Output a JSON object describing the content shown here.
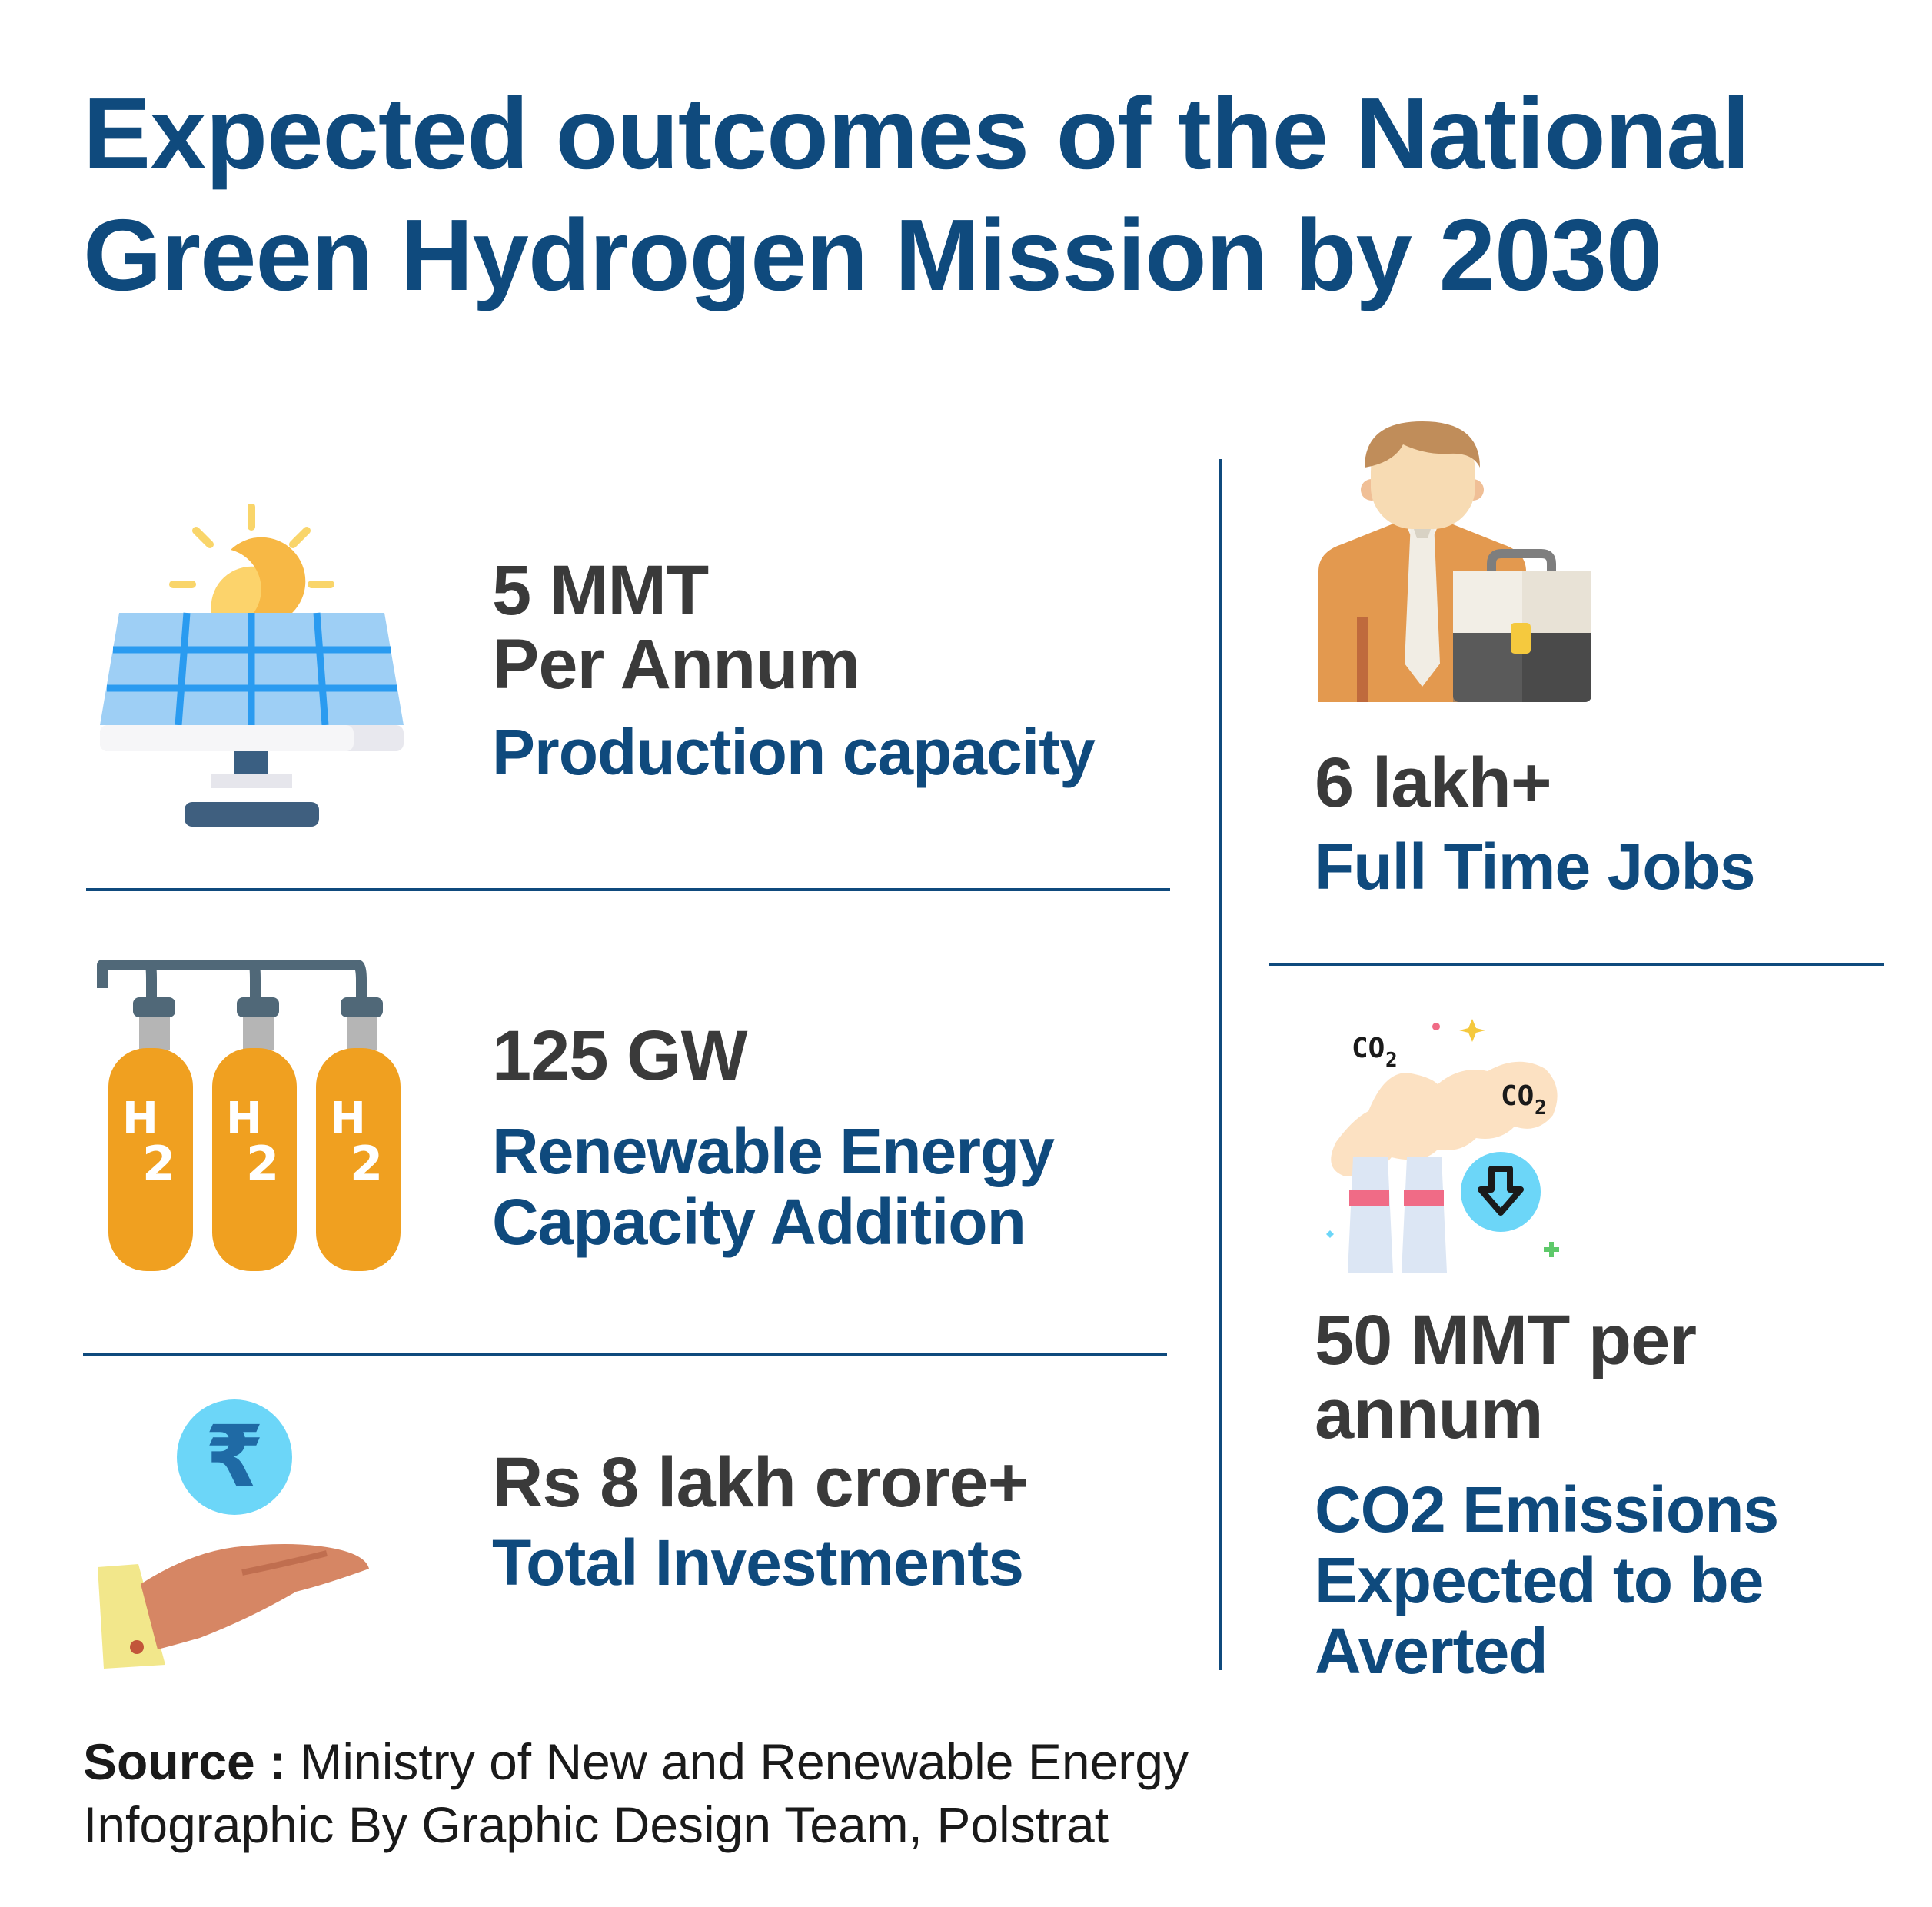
{
  "title": {
    "line1": "Expected outcomes of the National",
    "line2": "Green Hydrogen Mission by 2030"
  },
  "items": [
    {
      "value_line1": "5 MMT",
      "value_line2": "Per Annum",
      "label_line1": "Production capacity",
      "icon": "solar-panel-icon"
    },
    {
      "value_line1": "125 GW",
      "label_line1": "Renewable Energy",
      "label_line2": "Capacity Addition",
      "icon": "hydrogen-cylinders-icon"
    },
    {
      "value_line1": "Rs 8 lakh crore+",
      "label_line1": "Total Investments",
      "icon": "rupee-hand-icon"
    },
    {
      "value_line1": "6 lakh+",
      "label_line1": "Full Time Jobs",
      "icon": "businessman-icon"
    },
    {
      "value_line1": "50 MMT per",
      "value_line2": "annum",
      "label_line1": "CO2 Emissions",
      "label_line2": "Expected to be",
      "label_line3": "Averted",
      "icon": "co2-emissions-icon"
    }
  ],
  "icon_text": {
    "h": "H",
    "two": "2",
    "rupee": "₹",
    "co2_main": "CO",
    "co2_sub": "2"
  },
  "footer": {
    "source_label": "Source :",
    "source_text": " Ministry of New and Renewable Energy",
    "credit": "Infographic By Graphic Design Team, Polstrat"
  },
  "colors": {
    "primary": "#0f4a7d",
    "value_text": "#3a3a3a",
    "cylinder": "#f0a020",
    "solar_blue": "#9ecff5"
  }
}
